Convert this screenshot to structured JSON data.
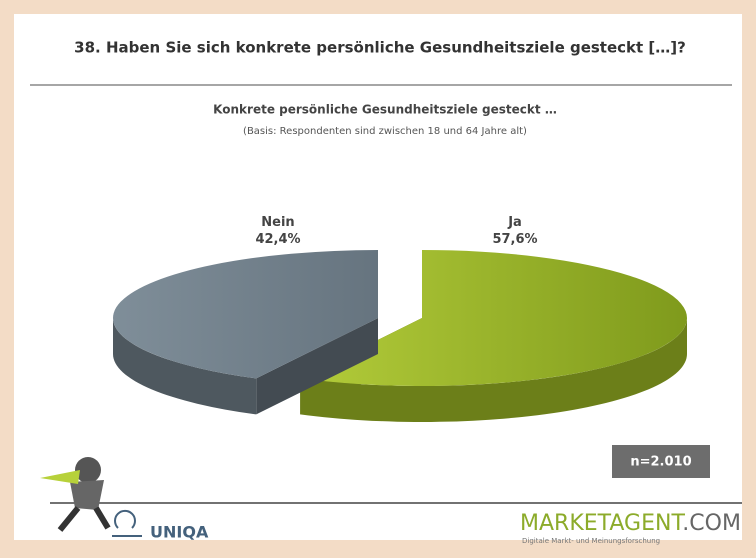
{
  "chart_data": {
    "type": "pie",
    "title": "38. Haben Sie sich konkrete persönliche Gesundheitsziele gesteckt […]?",
    "subtitle": "Konkrete persönliche Gesundheitsziele gesteckt …",
    "note": "(Basis: Respondenten sind zwischen 18 und 64 Jahre alt)",
    "categories": [
      "Ja",
      "Nein"
    ],
    "values": [
      57.6,
      42.4
    ],
    "value_labels": [
      "57,6%",
      "42,4%"
    ],
    "colors": [
      "#9ab523",
      "#6f7d88"
    ],
    "sample": "n=2.010"
  },
  "footer": {
    "uniqa": "UNIQA",
    "brand": "MARKETAGENT",
    "brand_suffix": ".COM",
    "tagline": "Digitale Markt- und Meinungsforschung"
  }
}
